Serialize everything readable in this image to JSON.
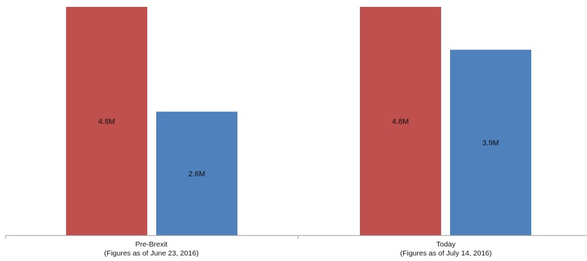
{
  "chart_data": {
    "type": "bar",
    "categories": [
      {
        "name": "Pre-Brexit",
        "note": "(Figures as of June 23, 2016)"
      },
      {
        "name": "Today",
        "note": "(Figures as of July 14, 2016)"
      }
    ],
    "series": [
      {
        "values": [
          4.8,
          4.8
        ],
        "labels": [
          "4.8M",
          "4.8M"
        ],
        "color": "#c0504d"
      },
      {
        "values": [
          2.6,
          3.9
        ],
        "labels": [
          "2.6M",
          "3.9M"
        ],
        "color": "#4f81bd"
      }
    ],
    "ylim": [
      0,
      4.8
    ],
    "grid": false,
    "legend": "none"
  }
}
